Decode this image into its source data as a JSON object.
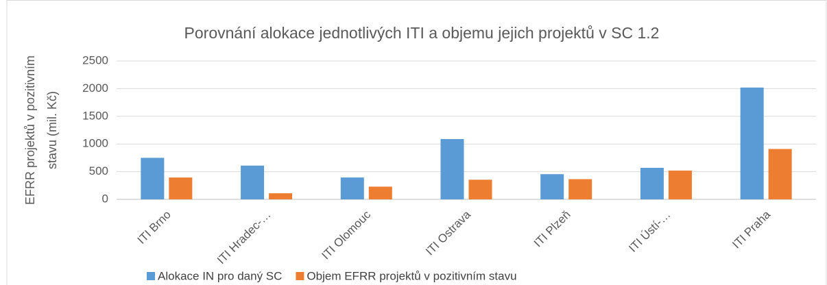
{
  "chart_data": {
    "type": "bar",
    "title": "Porovnání alokace jednotlivých ITI a objemu jejich projektů v SC 1.2",
    "y_label": [
      "EFRR projektů v pozitivním",
      "stavu (mil. Kč)"
    ],
    "categories": [
      "ITI Brno",
      "ITI Hradec-…",
      "ITI Olomouc",
      "ITI Ostrava",
      "ITI Plzeň",
      "ITI Ústí-…",
      "ITI Praha"
    ],
    "series": [
      {
        "name": "Alokace IN pro daný SC",
        "color": "#5b9bd5",
        "values": [
          750,
          610,
          395,
          1090,
          455,
          570,
          2020
        ]
      },
      {
        "name": "Objem EFRR projektů v pozitivním stavu",
        "color": "#ed7d31",
        "values": [
          395,
          110,
          230,
          355,
          365,
          520,
          910
        ]
      }
    ],
    "ylim": [
      0,
      2500
    ],
    "yticks": [
      0,
      500,
      1000,
      1500,
      2000,
      2500
    ],
    "grid": true,
    "legend": "bottom"
  }
}
